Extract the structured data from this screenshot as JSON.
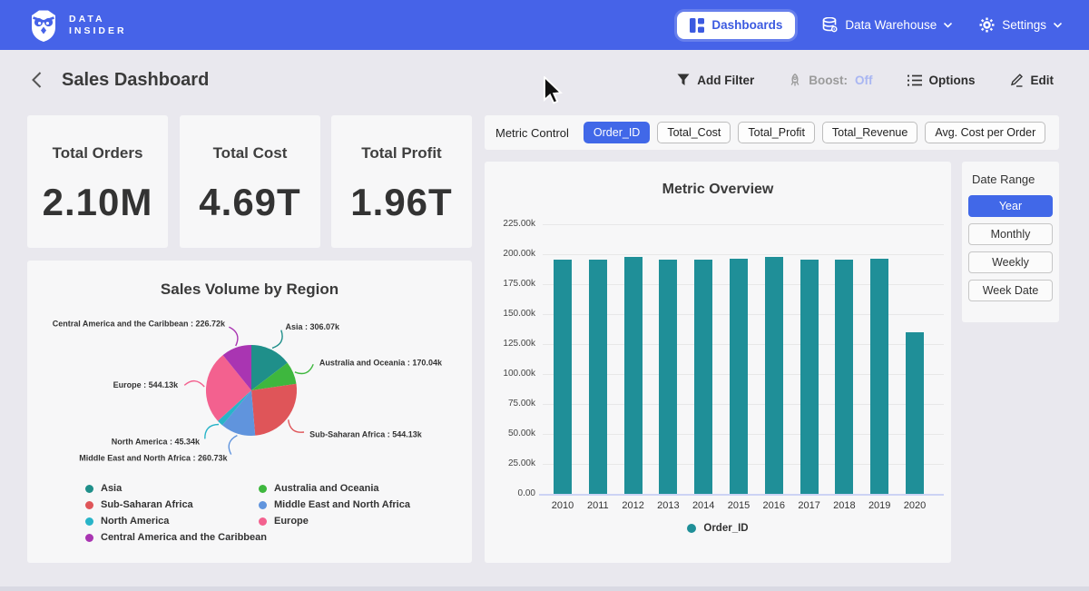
{
  "brand": {
    "line1": "DATA",
    "line2": "INSIDER"
  },
  "navbar": {
    "dashboards": "Dashboards",
    "data_warehouse": "Data Warehouse",
    "settings": "Settings"
  },
  "header": {
    "title": "Sales Dashboard",
    "add_filter": "Add Filter",
    "boost_label": "Boost:",
    "boost_value": "Off",
    "options": "Options",
    "edit": "Edit"
  },
  "kpis": [
    {
      "label": "Total Orders",
      "value": "2.10M"
    },
    {
      "label": "Total Cost",
      "value": "4.69T"
    },
    {
      "label": "Total Profit",
      "value": "1.96T"
    }
  ],
  "metric_control": {
    "label": "Metric Control",
    "options": [
      {
        "label": "Order_ID",
        "active": true
      },
      {
        "label": "Total_Cost",
        "active": false
      },
      {
        "label": "Total_Profit",
        "active": false
      },
      {
        "label": "Total_Revenue",
        "active": false
      },
      {
        "label": "Avg. Cost per Order",
        "active": false
      }
    ]
  },
  "date_range": {
    "label": "Date Range",
    "options": [
      {
        "label": "Year",
        "active": true
      },
      {
        "label": "Monthly",
        "active": false
      },
      {
        "label": "Weekly",
        "active": false
      },
      {
        "label": "Week Date",
        "active": false
      }
    ]
  },
  "colors": {
    "accent_blue": "#4168e8",
    "navbar_blue": "#4663e8",
    "bar_teal": "#1f8f98"
  },
  "chart_data": [
    {
      "type": "pie",
      "title": "Sales Volume by Region",
      "unit": "k",
      "slices": [
        {
          "name": "Asia",
          "value": 306.07,
          "label": "Asia : 306.07k",
          "color": "#1f8f8a"
        },
        {
          "name": "Australia and Oceania",
          "value": 170.04,
          "label": "Australia and Oceania : 170.04k",
          "color": "#3eb73e"
        },
        {
          "name": "Sub-Saharan Africa",
          "value": 544.13,
          "label": "Sub-Saharan Africa : 544.13k",
          "color": "#df5559"
        },
        {
          "name": "Middle East and North Africa",
          "value": 260.73,
          "label": "Middle East and North Africa : 260.73k",
          "color": "#6094dd"
        },
        {
          "name": "North America",
          "value": 45.34,
          "label": "North America : 45.34k",
          "color": "#28b4c8"
        },
        {
          "name": "Europe",
          "value": 544.13,
          "label": "Europe : 544.13k",
          "color": "#f3618f"
        },
        {
          "name": "Central America and the Caribbean",
          "value": 226.72,
          "label": "Central America and the Caribbean : 226.72k",
          "color": "#a935b2"
        }
      ],
      "legend_position": "bottom"
    },
    {
      "type": "bar",
      "title": "Metric Overview",
      "categories": [
        "2010",
        "2011",
        "2012",
        "2013",
        "2014",
        "2015",
        "2016",
        "2017",
        "2018",
        "2019",
        "2020"
      ],
      "series": [
        {
          "name": "Order_ID",
          "color": "#1f8f98",
          "values": [
            195800,
            195600,
            197400,
            195500,
            195800,
            196000,
            197600,
            195800,
            195500,
            196200,
            134900
          ]
        }
      ],
      "yticks": [
        "0.00",
        "25.00k",
        "50.00k",
        "75.00k",
        "100.00k",
        "125.00k",
        "150.00k",
        "175.00k",
        "200.00k",
        "225.00k"
      ],
      "ylim": [
        0,
        225000
      ],
      "grid": true,
      "legend_position": "bottom"
    }
  ]
}
